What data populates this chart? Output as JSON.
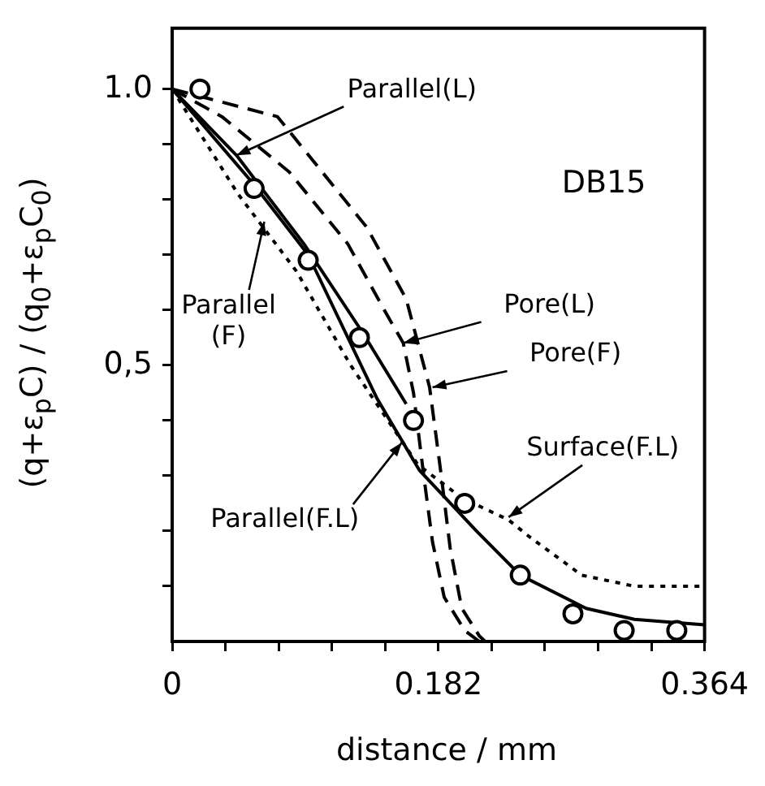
{
  "chart_data": {
    "type": "line",
    "xlabel": "distance / mm",
    "ylabel": "(q+ε$_{p}$C) / (q$_{0}$+ε$_{p}$C$_{0}$)",
    "xlim": [
      0,
      0.364
    ],
    "ylim": [
      0,
      1.11
    ],
    "xticks": [
      0,
      {
        "value": 0.0364,
        "label": null
      },
      {
        "value": 0.0728,
        "label": null
      },
      {
        "value": 0.1092,
        "label": null
      },
      {
        "value": 0.1456,
        "label": null
      },
      0.182,
      {
        "value": 0.2184,
        "label": null
      },
      {
        "value": 0.2548,
        "label": null
      },
      {
        "value": 0.2912,
        "label": null
      },
      {
        "value": 0.3276,
        "label": null
      },
      0.364
    ],
    "yticks": [
      {
        "value": 0.1,
        "label": null
      },
      {
        "value": 0.2,
        "label": null
      },
      {
        "value": 0.3,
        "label": null
      },
      {
        "value": 0.4,
        "label": null
      },
      {
        "value": 0.5,
        "label": "0,5"
      },
      {
        "value": 0.6,
        "label": null
      },
      {
        "value": 0.7,
        "label": null
      },
      {
        "value": 0.8,
        "label": null
      },
      {
        "value": 0.9,
        "label": null
      },
      {
        "value": 1.0,
        "label": "1.0"
      }
    ],
    "grid": false,
    "legend": false,
    "series": [
      {
        "type": "scatter",
        "marker": "circle",
        "color": "#000000",
        "x": [
          0.019,
          0.056,
          0.093,
          0.128,
          0.165,
          0.2,
          0.238,
          0.274,
          0.309,
          0.345
        ],
        "values": [
          1.0,
          0.82,
          0.69,
          0.55,
          0.4,
          0.25,
          0.12,
          0.05,
          0.02,
          0.02
        ]
      },
      {
        "line_style": "solid",
        "marker": "none",
        "color": "#000000",
        "x": [
          0,
          0.055,
          0.093,
          0.14,
          0.169,
          0.208,
          0.238,
          0.283,
          0.316,
          0.364
        ],
        "values": [
          1.0,
          0.83,
          0.7,
          0.44,
          0.31,
          0.2,
          0.12,
          0.06,
          0.04,
          0.03
        ]
      },
      {
        "line_style": "solid",
        "marker": "none",
        "color": "#000000",
        "x": [
          0,
          0.044,
          0.09,
          0.13,
          0.16
        ],
        "values": [
          1.0,
          0.88,
          0.72,
          0.56,
          0.43
        ]
      },
      {
        "line_style": "dotted",
        "marker": "none",
        "color": "#000000",
        "x": [
          0,
          0.045,
          0.085,
          0.122,
          0.168,
          0.198,
          0.23,
          0.244,
          0.28,
          0.316,
          0.364
        ],
        "values": [
          1.0,
          0.81,
          0.67,
          0.5,
          0.32,
          0.26,
          0.22,
          0.19,
          0.12,
          0.1,
          0.1
        ]
      },
      {
        "line_style": "dashed",
        "marker": "none",
        "color": "#000000",
        "x": [
          0,
          0.034,
          0.08,
          0.12,
          0.145,
          0.158,
          0.165,
          0.172,
          0.178,
          0.186,
          0.2,
          0.21
        ],
        "values": [
          1.0,
          0.95,
          0.85,
          0.72,
          0.6,
          0.54,
          0.45,
          0.3,
          0.18,
          0.08,
          0.02,
          0.0
        ]
      },
      {
        "line_style": "dashed",
        "marker": "none",
        "color": "#000000",
        "x": [
          0,
          0.072,
          0.133,
          0.16,
          0.176,
          0.184,
          0.19,
          0.198,
          0.21,
          0.214
        ],
        "values": [
          1.0,
          0.95,
          0.75,
          0.62,
          0.46,
          0.3,
          0.17,
          0.06,
          0.01,
          0.0
        ]
      }
    ],
    "annotations": [
      {
        "text": "Parallel(L)",
        "x": 0.044,
        "y": 0.88
      },
      {
        "text": "Parallel\n(F)",
        "x": 0.063,
        "y": 0.76
      },
      {
        "text": "Pore(L)",
        "x": 0.158,
        "y": 0.54
      },
      {
        "text": "Pore(F)",
        "x": 0.178,
        "y": 0.46
      },
      {
        "text": "Surface(F.L)",
        "x": 0.23,
        "y": 0.225
      },
      {
        "text": "Parallel(F.L)",
        "x": 0.157,
        "y": 0.36
      },
      "DB15"
    ]
  }
}
